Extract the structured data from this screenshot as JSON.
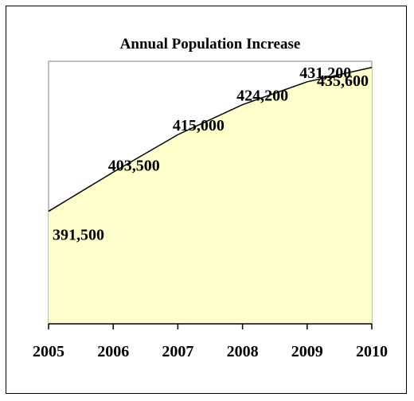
{
  "chart_data": {
    "type": "area",
    "title": "Annual Population Increase",
    "xlabel": "",
    "ylabel": "",
    "categories": [
      "2005",
      "2006",
      "2007",
      "2008",
      "2009",
      "2010"
    ],
    "series": [
      {
        "values": [
          391500,
          403500,
          415000,
          424200,
          431200,
          435600
        ],
        "data_labels": [
          "391,500",
          "403,500",
          "415,000",
          "424,200",
          "431,200",
          "435,600"
        ]
      }
    ],
    "ylim": [
      357000,
      437500
    ],
    "y_axis_visible": false,
    "grid": false,
    "legend": "none",
    "colors": {
      "area_fill": "#ffffcc",
      "line": "#000000",
      "plot_border": "#808080"
    }
  }
}
